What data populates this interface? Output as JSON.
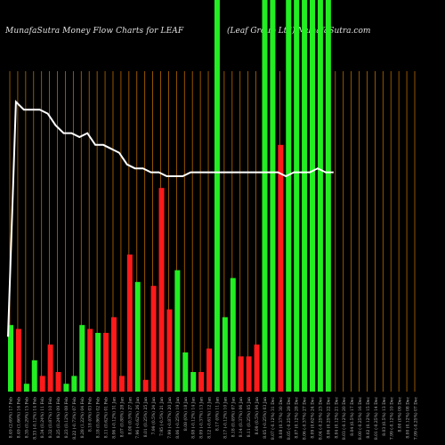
{
  "chart_data": {
    "type": "bar",
    "title": "MunafaSutra  Money Flow  Charts for LEAF",
    "subtitle": "(Leaf Group Ltd)  MunafaSutra.com",
    "colors": {
      "up": "#22ee22",
      "down": "#ff1a1a",
      "grid": "#b86a00",
      "line": "#ffffff",
      "background": "#000000"
    },
    "ylim": [
      0,
      100
    ],
    "categories": [
      "8.49 (2.69%) 17 Feb",
      "8.49 (1.66%) 16 Feb",
      "8.35 (0.29%) 15 Feb",
      "8.33 (-0.12%) 14 Feb",
      "8.34 (0.24%) 11 Feb",
      "8.32 (0.87%) 10 Feb",
      "8.25 (0.24%) 09 Feb",
      "8.23 (0.12%) 08 Feb",
      "8.22 (-0.73%) 07 Feb",
      "8.28 (1.22%) 04 Feb",
      "8.18 (0%) 03 Feb",
      "8.18 (0.86%) 02 Feb",
      "8.11 (0.62%) 01 Feb",
      "8.06 (-0.12%) 31 Jan",
      "8.07 (0.88%) 28 Jan",
      "8.00 (0.5%) 27 Jan",
      "7.96 (-0.62%) 26 Jan",
      "8.01 (0.25%) 25 Jan",
      "7.99 (0.5%) 24 Jan",
      "7.95 (-0.5%) 21 Jan",
      "7.99 (-0.87%) 20 Jan",
      "8.06 (-0.25%) 19 Jan",
      "8.08 (0%) 18 Jan",
      "8.08 (-0.12%) 14 Jan",
      "8.09 (-0.37%) 13 Jan",
      "8.12 (-0.61%) 12 Jan",
      "8.17 (0%) 11 Jan",
      "8.17 (-0.12%) 10 Jan",
      "8.18 (0.49%) 07 Jan",
      "8.14 (0.37%) 06 Jan",
      "8.11 (0.25%) 05 Jan",
      "8.09 (0.5%) 04 Jan",
      "8.05 (-0.25%) 03 Jan",
      "8.07 (-0.12%) 31 Dec",
      "8.08 (0.37%) 30 Dec",
      "8.05 (-0.25%) 29 Dec",
      "8.07 (0.12%) 28 Dec",
      "8.06 (-0.37%) 27 Dec",
      "8.09 (0.62%) 24 Dec",
      "8.04 (-0.25%) 23 Dec",
      "8.06 (0.25%) 22 Dec",
      "8.04 (0.12%) 21 Dec",
      "8.03 (-0.12%) 20 Dec",
      "8.04 (0.5%) 17 Dec",
      "8.00 (-0.25%) 16 Dec",
      "8.02 (0.12%) 15 Dec",
      "8.01 (-0.25%) 14 Dec",
      "8.03 (0.5%) 13 Dec",
      "7.99 (-0.12%) 10 Dec",
      "8.00 (0%) 09 Dec",
      "8.00 (0.12%) 08 Dec",
      "7.99 (-0.25%) 07 Dec"
    ],
    "bars": [
      {
        "value": 17,
        "color": "up"
      },
      {
        "value": 16,
        "color": "down"
      },
      {
        "value": 2,
        "color": "up"
      },
      {
        "value": 8,
        "color": "up"
      },
      {
        "value": 4,
        "color": "down"
      },
      {
        "value": 12,
        "color": "down"
      },
      {
        "value": 5,
        "color": "down"
      },
      {
        "value": 2,
        "color": "up"
      },
      {
        "value": 4,
        "color": "up"
      },
      {
        "value": 17,
        "color": "up"
      },
      {
        "value": 16,
        "color": "down"
      },
      {
        "value": 15,
        "color": "up"
      },
      {
        "value": 15,
        "color": "down"
      },
      {
        "value": 19,
        "color": "down"
      },
      {
        "value": 4,
        "color": "down"
      },
      {
        "value": 35,
        "color": "down"
      },
      {
        "value": 28,
        "color": "up"
      },
      {
        "value": 3,
        "color": "down"
      },
      {
        "value": 27,
        "color": "down"
      },
      {
        "value": 52,
        "color": "down"
      },
      {
        "value": 21,
        "color": "down"
      },
      {
        "value": 31,
        "color": "up"
      },
      {
        "value": 10,
        "color": "up"
      },
      {
        "value": 5,
        "color": "up"
      },
      {
        "value": 5,
        "color": "down"
      },
      {
        "value": 11,
        "color": "down"
      },
      {
        "value": 100,
        "color": "up"
      },
      {
        "value": 19,
        "color": "up"
      },
      {
        "value": 29,
        "color": "up"
      },
      {
        "value": 9,
        "color": "down"
      },
      {
        "value": 9,
        "color": "down"
      },
      {
        "value": 12,
        "color": "down"
      },
      {
        "value": 100,
        "color": "up"
      },
      {
        "value": 100,
        "color": "up"
      },
      {
        "value": 63,
        "color": "down"
      },
      {
        "value": 100,
        "color": "up"
      },
      {
        "value": 100,
        "color": "up"
      },
      {
        "value": 100,
        "color": "up"
      },
      {
        "value": 100,
        "color": "up"
      },
      {
        "value": 100,
        "color": "up"
      },
      {
        "value": 100,
        "color": "up"
      }
    ],
    "bar_index_start": 11,
    "bar_slots": [
      0,
      1,
      2,
      3,
      4,
      5,
      6,
      7,
      8,
      9,
      10,
      11,
      12,
      13,
      14,
      15,
      16,
      17,
      18,
      19,
      20,
      21,
      22,
      23,
      24,
      25,
      26,
      27,
      28,
      29,
      30,
      31,
      32,
      33,
      34,
      35,
      36,
      37,
      38,
      39,
      40
    ],
    "price_line": [
      14,
      74,
      72,
      72,
      72,
      71,
      68,
      66,
      66,
      65,
      66,
      63,
      63,
      62,
      61,
      58,
      57,
      57,
      56,
      56,
      55,
      55,
      55,
      56,
      56,
      56,
      56,
      56,
      56,
      56,
      56,
      56,
      56,
      56,
      56,
      55,
      56,
      56,
      56,
      57,
      56,
      56
    ],
    "grid_lines": 40
  }
}
